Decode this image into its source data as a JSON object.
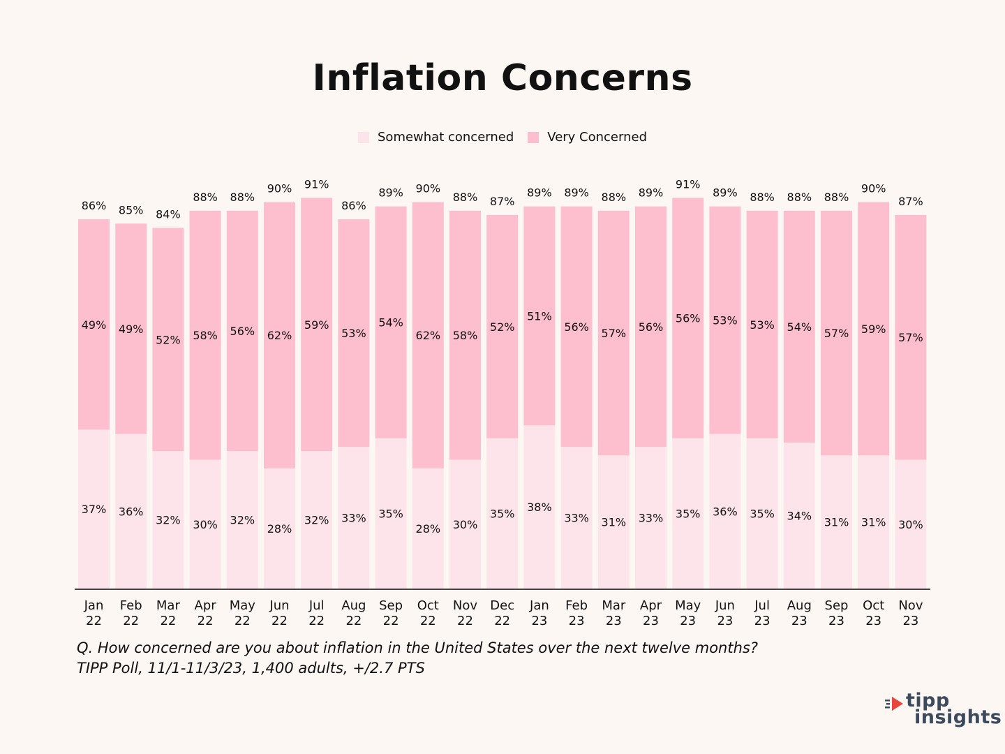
{
  "colors": {
    "background": "#fdf7f3",
    "somewhat": "#fde4ea",
    "very": "#fdbfce",
    "axis": "#444444",
    "logo_text": "#3c4a5e",
    "logo_mark": "#e8463c"
  },
  "legend": {
    "somewhat_label": "Somewhat concerned",
    "very_label": "Very Concerned"
  },
  "footnote": {
    "question": "Q. How concerned are you about inflation in the United States over the next twelve months?",
    "source": "TIPP Poll, 11/1-11/3/23, 1,400 adults, +/2.7 PTS"
  },
  "logo": {
    "line1": "tipp",
    "line2": "insights"
  },
  "chart_data": {
    "type": "bar",
    "stacked": true,
    "title": "Inflation Concerns",
    "xlabel": "",
    "ylabel": "",
    "ylim": [
      0,
      100
    ],
    "grid": false,
    "legend_position": "top-center",
    "value_suffix": "%",
    "categories": [
      [
        "Jan",
        "22"
      ],
      [
        "Feb",
        "22"
      ],
      [
        "Mar",
        "22"
      ],
      [
        "Apr",
        "22"
      ],
      [
        "May",
        "22"
      ],
      [
        "Jun",
        "22"
      ],
      [
        "Jul",
        "22"
      ],
      [
        "Aug",
        "22"
      ],
      [
        "Sep",
        "22"
      ],
      [
        "Oct",
        "22"
      ],
      [
        "Nov",
        "22"
      ],
      [
        "Dec",
        "22"
      ],
      [
        "Jan",
        "23"
      ],
      [
        "Feb",
        "23"
      ],
      [
        "Mar",
        "23"
      ],
      [
        "Apr",
        "23"
      ],
      [
        "May",
        "23"
      ],
      [
        "Jun",
        "23"
      ],
      [
        "Jul",
        "23"
      ],
      [
        "Aug",
        "23"
      ],
      [
        "Sep",
        "23"
      ],
      [
        "Oct",
        "23"
      ],
      [
        "Nov",
        "23"
      ]
    ],
    "series": [
      {
        "name": "Somewhat concerned",
        "color": "#fde4ea",
        "values": [
          37,
          36,
          32,
          30,
          32,
          28,
          32,
          33,
          35,
          28,
          30,
          35,
          38,
          33,
          31,
          33,
          35,
          36,
          35,
          34,
          31,
          31,
          30
        ]
      },
      {
        "name": "Very Concerned",
        "color": "#fdbfce",
        "values": [
          49,
          49,
          52,
          58,
          56,
          62,
          59,
          53,
          54,
          62,
          58,
          52,
          51,
          56,
          57,
          56,
          56,
          53,
          53,
          54,
          57,
          59,
          57
        ]
      }
    ],
    "totals": [
      86,
      85,
      84,
      88,
      88,
      90,
      91,
      86,
      89,
      90,
      88,
      87,
      89,
      89,
      88,
      89,
      91,
      89,
      88,
      88,
      88,
      90,
      87
    ]
  }
}
